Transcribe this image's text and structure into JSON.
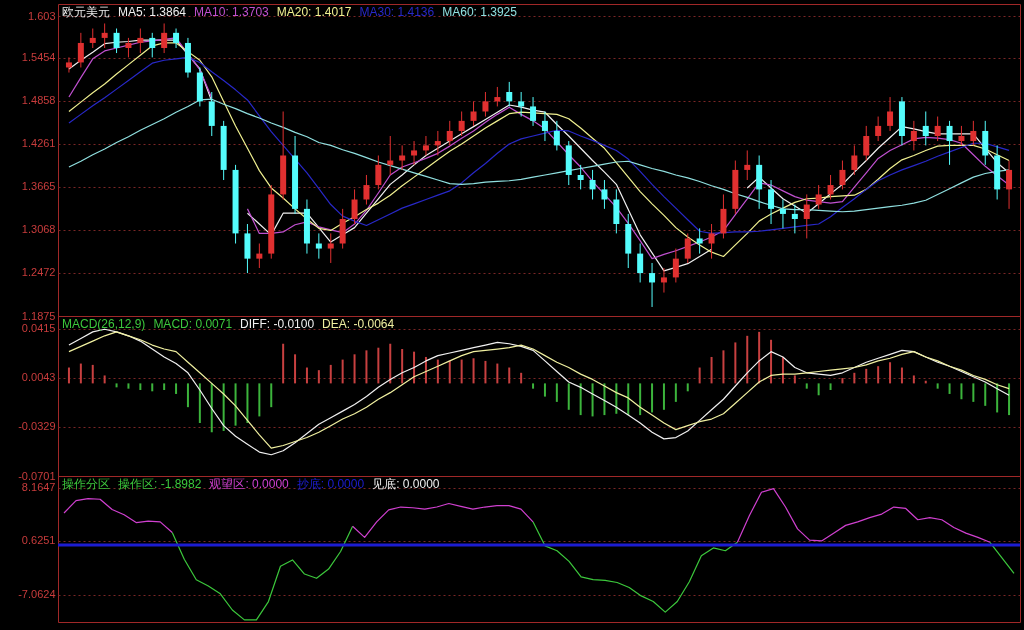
{
  "chart_data": [
    {
      "type": "candlestick",
      "title": "欧元美元",
      "categories": [
        null,
        null,
        null,
        null,
        null,
        null,
        null,
        null,
        null,
        null,
        null,
        null,
        null,
        null,
        null,
        null,
        null,
        null,
        null,
        null,
        null,
        null,
        null,
        null,
        null,
        null,
        null,
        null,
        null,
        null,
        null,
        null,
        null,
        null,
        null,
        null,
        null,
        null,
        null,
        null,
        null,
        null,
        null,
        null,
        null,
        null,
        null,
        null,
        null,
        null,
        null,
        null,
        null,
        null,
        null,
        null,
        null,
        null,
        null,
        null,
        null,
        null,
        null,
        null,
        null,
        null,
        null,
        null,
        null,
        null,
        null,
        null,
        null,
        null,
        null,
        null,
        null,
        null,
        null,
        null
      ],
      "ohlc": [
        [
          1.532,
          1.546,
          1.525,
          1.539
        ],
        [
          1.539,
          1.58,
          1.532,
          1.566
        ],
        [
          1.566,
          1.586,
          1.559,
          1.573
        ],
        [
          1.573,
          1.593,
          1.559,
          1.58
        ],
        [
          1.58,
          1.586,
          1.552,
          1.559
        ],
        [
          1.559,
          1.573,
          1.546,
          1.566
        ],
        [
          1.566,
          1.586,
          1.552,
          1.573
        ],
        [
          1.573,
          1.58,
          1.546,
          1.559
        ],
        [
          1.559,
          1.593,
          1.552,
          1.58
        ],
        [
          1.58,
          1.586,
          1.559,
          1.566
        ],
        [
          1.566,
          1.573,
          1.518,
          1.525
        ],
        [
          1.525,
          1.532,
          1.478,
          1.485
        ],
        [
          1.485,
          1.498,
          1.437,
          1.451
        ],
        [
          1.451,
          1.458,
          1.376,
          1.39
        ],
        [
          1.39,
          1.397,
          1.288,
          1.302
        ],
        [
          1.302,
          1.315,
          1.247,
          1.267
        ],
        [
          1.267,
          1.288,
          1.254,
          1.274
        ],
        [
          1.274,
          1.369,
          1.267,
          1.356
        ],
        [
          1.356,
          1.471,
          1.349,
          1.41
        ],
        [
          1.41,
          1.437,
          1.329,
          1.336
        ],
        [
          1.336,
          1.349,
          1.274,
          1.288
        ],
        [
          1.288,
          1.302,
          1.267,
          1.281
        ],
        [
          1.281,
          1.302,
          1.261,
          1.288
        ],
        [
          1.288,
          1.336,
          1.281,
          1.322
        ],
        [
          1.322,
          1.363,
          1.315,
          1.349
        ],
        [
          1.349,
          1.383,
          1.342,
          1.369
        ],
        [
          1.369,
          1.41,
          1.363,
          1.397
        ],
        [
          1.397,
          1.437,
          1.383,
          1.403
        ],
        [
          1.403,
          1.424,
          1.39,
          1.41
        ],
        [
          1.41,
          1.43,
          1.397,
          1.417
        ],
        [
          1.417,
          1.437,
          1.41,
          1.424
        ],
        [
          1.424,
          1.444,
          1.41,
          1.43
        ],
        [
          1.43,
          1.458,
          1.424,
          1.444
        ],
        [
          1.444,
          1.471,
          1.437,
          1.458
        ],
        [
          1.458,
          1.485,
          1.451,
          1.471
        ],
        [
          1.471,
          1.498,
          1.464,
          1.485
        ],
        [
          1.485,
          1.505,
          1.478,
          1.491
        ],
        [
          1.498,
          1.512,
          1.478,
          1.485
        ],
        [
          1.485,
          1.498,
          1.464,
          1.478
        ],
        [
          1.478,
          1.491,
          1.451,
          1.458
        ],
        [
          1.458,
          1.471,
          1.43,
          1.444
        ],
        [
          1.444,
          1.458,
          1.417,
          1.424
        ],
        [
          1.424,
          1.43,
          1.369,
          1.383
        ],
        [
          1.383,
          1.397,
          1.363,
          1.376
        ],
        [
          1.376,
          1.39,
          1.349,
          1.363
        ],
        [
          1.363,
          1.376,
          1.336,
          1.349
        ],
        [
          1.349,
          1.363,
          1.302,
          1.315
        ],
        [
          1.315,
          1.329,
          1.254,
          1.274
        ],
        [
          1.274,
          1.288,
          1.234,
          1.247
        ],
        [
          1.247,
          1.261,
          1.2,
          1.234
        ],
        [
          1.234,
          1.254,
          1.22,
          1.241
        ],
        [
          1.241,
          1.281,
          1.234,
          1.267
        ],
        [
          1.267,
          1.302,
          1.261,
          1.295
        ],
        [
          1.295,
          1.309,
          1.274,
          1.288
        ],
        [
          1.288,
          1.315,
          1.267,
          1.302
        ],
        [
          1.302,
          1.356,
          1.295,
          1.336
        ],
        [
          1.336,
          1.403,
          1.329,
          1.39
        ],
        [
          1.39,
          1.417,
          1.376,
          1.397
        ],
        [
          1.397,
          1.41,
          1.336,
          1.363
        ],
        [
          1.363,
          1.376,
          1.315,
          1.336
        ],
        [
          1.336,
          1.349,
          1.309,
          1.329
        ],
        [
          1.329,
          1.342,
          1.302,
          1.322
        ],
        [
          1.322,
          1.356,
          1.295,
          1.342
        ],
        [
          1.342,
          1.369,
          1.336,
          1.356
        ],
        [
          1.356,
          1.383,
          1.349,
          1.369
        ],
        [
          1.369,
          1.403,
          1.363,
          1.39
        ],
        [
          1.39,
          1.424,
          1.383,
          1.41
        ],
        [
          1.41,
          1.451,
          1.403,
          1.437
        ],
        [
          1.437,
          1.464,
          1.43,
          1.451
        ],
        [
          1.451,
          1.491,
          1.444,
          1.471
        ],
        [
          1.485,
          1.491,
          1.424,
          1.437
        ],
        [
          1.43,
          1.458,
          1.417,
          1.444
        ],
        [
          1.451,
          1.471,
          1.424,
          1.437
        ],
        [
          1.437,
          1.464,
          1.43,
          1.451
        ],
        [
          1.451,
          1.458,
          1.397,
          1.43
        ],
        [
          1.43,
          1.451,
          1.424,
          1.437
        ],
        [
          1.43,
          1.458,
          1.424,
          1.444
        ],
        [
          1.444,
          1.458,
          1.397,
          1.41
        ],
        [
          1.41,
          1.424,
          1.349,
          1.363
        ],
        [
          1.363,
          1.403,
          1.336,
          1.39
        ]
      ],
      "colors": [
        "#e03030",
        "#e03030",
        "#e03030",
        "#e03030",
        "#54fcfc",
        "#e03030",
        "#e03030",
        "#54fcfc",
        "#e03030",
        "#54fcfc",
        "#54fcfc",
        "#54fcfc",
        "#54fcfc",
        "#54fcfc",
        "#54fcfc",
        "#54fcfc",
        "#e03030",
        "#e03030",
        "#e03030",
        "#54fcfc",
        "#54fcfc",
        "#54fcfc",
        "#e03030",
        "#e03030",
        "#e03030",
        "#e03030",
        "#e03030",
        "#e03030",
        "#e03030",
        "#e03030",
        "#e03030",
        "#e03030",
        "#e03030",
        "#e03030",
        "#e03030",
        "#e03030",
        "#e03030",
        "#54fcfc",
        "#54fcfc",
        "#54fcfc",
        "#54fcfc",
        "#54fcfc",
        "#54fcfc",
        "#54fcfc",
        "#54fcfc",
        "#54fcfc",
        "#54fcfc",
        "#54fcfc",
        "#54fcfc",
        "#54fcfc",
        "#e03030",
        "#e03030",
        "#e03030",
        "#54fcfc",
        "#e03030",
        "#e03030",
        "#e03030",
        "#e03030",
        "#54fcfc",
        "#54fcfc",
        "#54fcfc",
        "#54fcfc",
        "#e03030",
        "#e03030",
        "#e03030",
        "#e03030",
        "#e03030",
        "#e03030",
        "#e03030",
        "#e03030",
        "#54fcfc",
        "#e03030",
        "#54fcfc",
        "#e03030",
        "#54fcfc",
        "#e03030",
        "#e03030",
        "#54fcfc",
        "#54fcfc",
        "#e03030"
      ],
      "series": [
        {
          "name": "MA5: 1.3864",
          "type": "line",
          "color": "#f0f0f0",
          "values": [
            1.53,
            1.542,
            1.553,
            1.565,
            1.567,
            1.568,
            1.57,
            1.57,
            1.57,
            1.57,
            1.55,
            1.53,
            1.485,
            null,
            null,
            1.33,
            1.315,
            1.3,
            1.33,
            1.33,
            1.33,
            1.31,
            1.29,
            1.3,
            1.31,
            1.33,
            1.35,
            1.37,
            1.383,
            1.397,
            1.41,
            1.42,
            1.43,
            1.44,
            1.45,
            1.46,
            1.47,
            1.48,
            1.477,
            1.473,
            1.47,
            1.453,
            1.437,
            1.42,
            1.403,
            1.387,
            1.37,
            1.335,
            1.3,
            1.275,
            1.25,
            1.255,
            1.26,
            1.27,
            1.28,
            null,
            null,
            1.365,
            1.38,
            1.365,
            1.35,
            1.34,
            1.33,
            1.343,
            1.357,
            1.37,
            1.387,
            1.403,
            1.42,
            1.435,
            1.45,
            1.447,
            1.443,
            1.44,
            1.44,
            1.44,
            1.44,
            1.42,
            1.4,
            1.386
          ]
        },
        {
          "name": "MA10: 1.3703",
          "type": "line",
          "color": "#c050d0",
          "values": [
            1.491,
            1.518,
            1.544,
            1.555,
            1.559,
            1.563,
            1.567,
            1.569,
            1.571,
            1.573,
            1.551,
            1.529,
            1.49,
            null,
            null,
            1.336,
            1.302,
            1.302,
            1.304,
            1.314,
            1.318,
            1.311,
            1.307,
            1.303,
            1.315,
            1.334,
            1.358,
            1.383,
            1.394,
            1.4,
            1.406,
            1.413,
            1.423,
            1.434,
            1.444,
            1.456,
            1.467,
            1.477,
            1.467,
            1.458,
            1.447,
            1.429,
            1.411,
            1.394,
            1.374,
            1.356,
            1.338,
            1.316,
            1.292,
            1.267,
            1.273,
            1.278,
            1.284,
            1.29,
            1.297,
            1.306,
            1.328,
            1.35,
            1.372,
            1.369,
            1.361,
            1.353,
            1.348,
            1.346,
            1.344,
            1.346,
            1.366,
            1.386,
            1.406,
            1.417,
            1.425,
            1.433,
            1.435,
            1.434,
            1.432,
            1.427,
            1.411,
            1.395,
            1.382,
            1.369
          ]
        },
        {
          "name": "MA20: 1.4017",
          "type": "line",
          "color": "#f0f090",
          "values": [
            1.471,
            1.484,
            1.497,
            1.509,
            1.523,
            1.536,
            1.549,
            1.562,
            1.566,
            1.566,
            1.554,
            1.542,
            1.519,
            1.485,
            1.451,
            1.42,
            1.389,
            1.365,
            1.351,
            1.336,
            1.322,
            1.309,
            1.306,
            1.316,
            1.325,
            1.335,
            1.344,
            1.355,
            1.368,
            1.38,
            1.392,
            1.404,
            1.416,
            1.426,
            1.437,
            1.448,
            1.458,
            1.468,
            1.47,
            1.469,
            1.468,
            1.467,
            1.461,
            1.448,
            1.434,
            1.42,
            1.4,
            1.38,
            1.36,
            1.343,
            1.327,
            1.31,
            1.297,
            1.286,
            1.276,
            1.27,
            1.286,
            1.302,
            1.319,
            1.329,
            1.337,
            1.345,
            1.35,
            1.351,
            1.353,
            1.354,
            1.355,
            1.363,
            1.377,
            1.392,
            1.404,
            1.41,
            1.417,
            1.423,
            1.424,
            1.424,
            1.424,
            1.419,
            1.411,
            1.403
          ]
        },
        {
          "name": "MA30: 1.4136",
          "type": "line",
          "color": "#2828c8",
          "values": [
            1.455,
            1.467,
            1.479,
            1.49,
            1.502,
            1.514,
            1.526,
            1.538,
            1.542,
            1.544,
            1.546,
            1.539,
            1.526,
            1.514,
            1.501,
            1.487,
            1.465,
            1.443,
            1.424,
            1.405,
            1.386,
            1.364,
            1.342,
            1.326,
            1.319,
            1.313,
            1.321,
            1.329,
            1.337,
            1.343,
            1.349,
            1.355,
            1.361,
            1.372,
            1.386,
            1.399,
            1.413,
            1.426,
            1.433,
            1.437,
            1.441,
            1.445,
            1.444,
            1.437,
            1.431,
            1.424,
            1.417,
            1.405,
            1.388,
            1.37,
            1.353,
            1.337,
            1.321,
            1.305,
            1.302,
            1.303,
            1.304,
            1.304,
            1.305,
            1.307,
            1.309,
            1.311,
            1.313,
            1.315,
            1.325,
            1.338,
            1.35,
            1.363,
            1.375,
            1.383,
            1.39,
            1.396,
            1.402,
            1.409,
            1.415,
            1.421,
            1.427,
            1.427,
            1.422,
            1.417
          ]
        },
        {
          "name": "MA60: 1.3925",
          "type": "line",
          "color": "#90e0e0",
          "values": [
            1.394,
            1.402,
            1.411,
            1.419,
            1.428,
            1.436,
            1.445,
            1.453,
            1.461,
            1.47,
            1.478,
            1.487,
            1.488,
            1.481,
            1.475,
            1.468,
            1.462,
            1.455,
            1.449,
            1.442,
            1.436,
            1.428,
            1.424,
            1.418,
            1.413,
            1.407,
            1.401,
            1.396,
            1.391,
            1.386,
            1.381,
            1.376,
            1.371,
            1.37,
            1.371,
            1.373,
            1.374,
            1.375,
            1.377,
            1.38,
            1.383,
            1.386,
            1.389,
            1.392,
            1.395,
            1.398,
            1.401,
            1.402,
            1.397,
            1.392,
            1.388,
            1.383,
            1.379,
            1.374,
            1.368,
            1.363,
            1.357,
            1.352,
            1.346,
            1.341,
            1.336,
            1.335,
            1.335,
            1.334,
            1.333,
            1.332,
            1.333,
            1.335,
            1.337,
            1.339,
            1.341,
            1.344,
            1.348,
            1.356,
            1.364,
            1.372,
            1.38,
            1.385,
            1.388,
            1.39
          ]
        }
      ],
      "ylim": [
        1.1875,
        1.62
      ],
      "yticks": [
        1.1875,
        1.2472,
        1.3068,
        1.3665,
        1.4261,
        1.4858,
        1.5454,
        1.603
      ],
      "grid": "y",
      "tick_labels": "y"
    },
    {
      "type": "bar",
      "title": "MACD(26,12,9)",
      "categories": [
        null,
        null,
        null,
        null,
        null,
        null,
        null,
        null,
        null,
        null,
        null,
        null,
        null,
        null,
        null,
        null,
        null,
        null,
        null,
        null,
        null,
        null,
        null,
        null,
        null,
        null,
        null,
        null,
        null,
        null,
        null,
        null,
        null,
        null,
        null,
        null,
        null,
        null,
        null,
        null,
        null,
        null,
        null,
        null,
        null,
        null,
        null,
        null,
        null,
        null,
        null,
        null,
        null,
        null,
        null,
        null,
        null,
        null,
        null,
        null,
        null,
        null,
        null,
        null,
        null,
        null,
        null,
        null,
        null,
        null,
        null,
        null,
        null,
        null,
        null,
        null,
        null,
        null,
        null,
        null
      ],
      "series": [
        {
          "name": "MACD: 0.0071",
          "type": "bar",
          "color": "#3cc83c",
          "values": [
            0.012,
            0.015,
            0.014,
            0.006,
            -0.003,
            -0.004,
            -0.005,
            -0.006,
            -0.005,
            -0.008,
            -0.018,
            -0.03,
            -0.037,
            -0.036,
            -0.032,
            -0.03,
            -0.025,
            -0.018,
            0.03,
            0.022,
            0.012,
            0.01,
            0.014,
            0.018,
            0.022,
            0.025,
            0.027,
            0.03,
            0.026,
            0.024,
            0.02,
            0.018,
            0.017,
            0.018,
            0.019,
            0.017,
            0.015,
            0.012,
            0.008,
            -0.004,
            -0.01,
            -0.014,
            -0.02,
            -0.024,
            -0.025,
            -0.024,
            -0.023,
            -0.024,
            -0.024,
            -0.022,
            -0.02,
            -0.014,
            -0.006,
            0.012,
            0.02,
            0.025,
            0.031,
            0.036,
            0.039,
            0.033,
            0.02,
            0.006,
            -0.004,
            -0.009,
            -0.005,
            0.004,
            0.008,
            0.011,
            0.013,
            0.016,
            0.012,
            0.006,
            0.002,
            -0.004,
            -0.008,
            -0.012,
            -0.014,
            -0.017,
            -0.022,
            -0.024
          ],
          "colors": [
            "#c84040",
            "#c84040",
            "#c84040",
            "#c84040",
            "#3cb43c",
            "#3cb43c",
            "#3cb43c",
            "#3cb43c",
            "#3cb43c",
            "#3cb43c",
            "#3cb43c",
            "#3cb43c",
            "#3cb43c",
            "#3cb43c",
            "#3cb43c",
            "#3cb43c",
            "#3cb43c",
            "#3cb43c",
            "#c84040",
            "#c84040",
            "#c84040",
            "#c84040",
            "#c84040",
            "#c84040",
            "#c84040",
            "#c84040",
            "#c84040",
            "#c84040",
            "#c84040",
            "#c84040",
            "#c84040",
            "#c84040",
            "#c84040",
            "#c84040",
            "#c84040",
            "#c84040",
            "#c84040",
            "#c84040",
            "#c84040",
            "#3cb43c",
            "#3cb43c",
            "#3cb43c",
            "#3cb43c",
            "#3cb43c",
            "#3cb43c",
            "#3cb43c",
            "#3cb43c",
            "#3cb43c",
            "#3cb43c",
            "#3cb43c",
            "#3cb43c",
            "#3cb43c",
            "#3cb43c",
            "#c84040",
            "#c84040",
            "#c84040",
            "#c84040",
            "#c84040",
            "#c84040",
            "#c84040",
            "#c84040",
            "#c84040",
            "#3cb43c",
            "#3cb43c",
            "#3cb43c",
            "#c84040",
            "#c84040",
            "#c84040",
            "#c84040",
            "#c84040",
            "#c84040",
            "#c84040",
            "#c84040",
            "#3cb43c",
            "#3cb43c",
            "#3cb43c",
            "#3cb43c",
            "#3cb43c",
            "#3cb43c",
            "#3cb43c"
          ]
        },
        {
          "name": "DIFF: -0.0100",
          "type": "line",
          "color": "#f0f0f0",
          "values": [
            0.029,
            0.034,
            0.039,
            0.041,
            0.039,
            0.036,
            0.032,
            0.026,
            0.02,
            0.015,
            0.008,
            -0.005,
            -0.019,
            -0.032,
            -0.04,
            -0.046,
            -0.052,
            -0.054,
            -0.051,
            -0.045,
            -0.038,
            -0.031,
            -0.026,
            -0.021,
            -0.016,
            -0.01,
            -0.003,
            0.003,
            0.008,
            0.012,
            0.017,
            0.021,
            0.023,
            0.025,
            0.027,
            0.029,
            0.031,
            0.03,
            0.028,
            0.025,
            0.017,
            0.009,
            0.001,
            -0.003,
            -0.008,
            -0.013,
            -0.018,
            -0.024,
            -0.03,
            -0.037,
            -0.042,
            -0.041,
            -0.036,
            -0.028,
            -0.02,
            -0.012,
            -0.002,
            0.008,
            0.017,
            0.024,
            0.02,
            0.012,
            0.008,
            0.007,
            0.006,
            0.008,
            0.012,
            0.016,
            0.019,
            0.022,
            0.025,
            0.024,
            0.02,
            0.016,
            0.013,
            0.009,
            0.005,
            0.001,
            -0.004,
            -0.009
          ]
        },
        {
          "name": "DEA: -0.0064",
          "type": "line",
          "color": "#f0f0a0",
          "values": [
            0.024,
            0.028,
            0.032,
            0.036,
            0.039,
            0.036,
            0.033,
            0.029,
            0.026,
            0.024,
            0.016,
            0.008,
            0.0,
            -0.008,
            -0.017,
            -0.028,
            -0.039,
            -0.049,
            -0.047,
            -0.044,
            -0.041,
            -0.037,
            -0.032,
            -0.027,
            -0.023,
            -0.018,
            -0.012,
            -0.007,
            -0.001,
            0.005,
            0.009,
            0.013,
            0.017,
            0.021,
            0.024,
            0.025,
            0.026,
            0.027,
            0.029,
            0.026,
            0.021,
            0.016,
            0.012,
            0.007,
            0.003,
            -0.002,
            -0.007,
            -0.011,
            -0.018,
            -0.024,
            -0.03,
            -0.035,
            -0.032,
            -0.029,
            -0.027,
            -0.023,
            -0.015,
            -0.007,
            0.001,
            0.006,
            0.007,
            0.007,
            0.008,
            0.009,
            0.01,
            0.011,
            0.012,
            0.014,
            0.017,
            0.019,
            0.022,
            0.024,
            0.02,
            0.017,
            0.013,
            0.01,
            0.006,
            0.003,
            -0.001,
            -0.004
          ]
        }
      ],
      "ylim": [
        -0.0701,
        0.051
      ],
      "yticks": [
        -0.0701,
        -0.0329,
        0.0043,
        0.0415
      ],
      "grid": "y",
      "tick_labels": "y"
    },
    {
      "type": "line",
      "title": "操作分区",
      "categories": [
        null,
        null,
        null,
        null,
        null,
        null,
        null,
        null,
        null,
        null,
        null,
        null,
        null,
        null,
        null,
        null,
        null,
        null,
        null,
        null,
        null,
        null,
        null,
        null,
        null,
        null,
        null,
        null,
        null,
        null,
        null,
        null,
        null,
        null,
        null,
        null,
        null,
        null,
        null,
        null,
        null,
        null,
        null,
        null,
        null,
        null,
        null,
        null,
        null,
        null,
        null,
        null,
        null,
        null,
        null,
        null,
        null,
        null,
        null,
        null,
        null,
        null,
        null,
        null,
        null,
        null,
        null,
        null,
        null,
        null,
        null,
        null,
        null,
        null,
        null,
        null,
        null,
        null,
        null,
        null
      ],
      "series": [
        {
          "name": "操作区: -1.8982",
          "color": "#3cc83c",
          "values": [
            null,
            null,
            null,
            null,
            null,
            null,
            null,
            null,
            null,
            1.8,
            -2.0,
            -4.9,
            -5.8,
            -6.9,
            -9.2,
            -10.6,
            -10.6,
            -8.0,
            -3.0,
            -2.1,
            -4.1,
            -4.7,
            -3.4,
            -0.9,
            2.67,
            null,
            null,
            null,
            null,
            null,
            null,
            null,
            null,
            null,
            null,
            null,
            null,
            null,
            null,
            3.3,
            -0.1,
            -0.8,
            -2.3,
            -4.5,
            -4.9,
            -5.0,
            -5.3,
            -6.0,
            -7.2,
            -8.0,
            -9.5,
            -8.0,
            -5.2,
            -1.5,
            -0.4,
            -0.8,
            0.4,
            null,
            null,
            null,
            null,
            null,
            null,
            null,
            null,
            null,
            null,
            null,
            null,
            null,
            null,
            null,
            null,
            null,
            null,
            null,
            null,
            0.4,
            -1.8,
            -4.0
          ]
        },
        {
          "name": "观望区: 0.0000",
          "color": "#d040d0",
          "values": [
            4.56,
            6.3,
            6.6,
            6.5,
            5.04,
            4.3,
            3.2,
            3.4,
            3.3,
            1.8,
            null,
            null,
            null,
            null,
            null,
            null,
            null,
            null,
            null,
            null,
            null,
            null,
            null,
            null,
            2.67,
            1.1,
            3.3,
            5.0,
            5.4,
            5.3,
            5.1,
            5.4,
            5.9,
            5.5,
            5.1,
            5.4,
            5.6,
            5.6,
            5.1,
            3.3,
            null,
            null,
            null,
            null,
            null,
            null,
            null,
            null,
            null,
            null,
            null,
            null,
            null,
            null,
            null,
            null,
            0.4,
            4.2,
            7.5,
            8.0,
            5.4,
            2.3,
            0.7,
            0.6,
            1.7,
            2.8,
            3.3,
            3.9,
            4.4,
            5.4,
            5.2,
            3.6,
            3.9,
            3.6,
            2.5,
            1.7,
            1.1,
            0.4,
            null,
            null
          ]
        }
      ],
      "annotations": [
        "见底: 0.0000"
      ],
      "ref_lines": [
        {
          "axis": "y",
          "value": 0,
          "label": "抄底: 0.0000",
          "color": "#1c1cd0"
        }
      ],
      "ylim": [
        -10.9,
        9.8
      ],
      "yticks": [
        -7.0624,
        0.6251,
        8.1647
      ],
      "grid": "y",
      "tick_labels": "y"
    }
  ]
}
